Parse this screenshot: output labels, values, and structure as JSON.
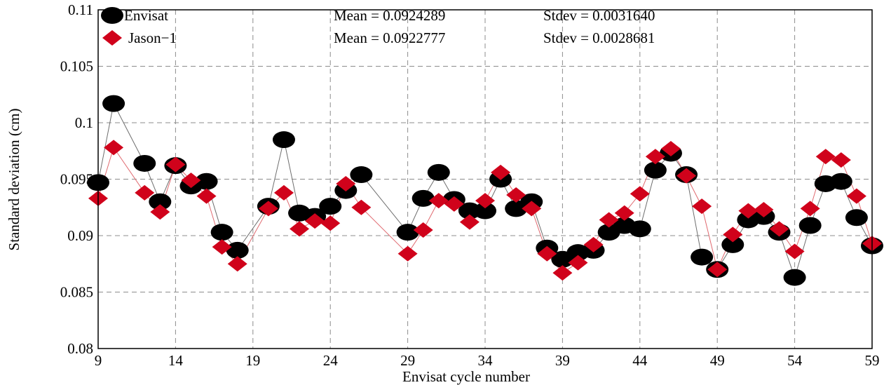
{
  "chart_data": {
    "type": "line",
    "title": "",
    "xlabel": "Envisat cycle number",
    "ylabel": "Standard deviation (cm)",
    "xlim": [
      9,
      59
    ],
    "ylim": [
      0.08,
      0.11
    ],
    "xticks": [
      "9",
      "14",
      "19",
      "24",
      "29",
      "34",
      "39",
      "44",
      "49",
      "54",
      "59"
    ],
    "yticks": [
      "0.08",
      "0.085",
      "0.09",
      "0.095",
      "0.1",
      "0.105",
      "0.11"
    ],
    "grid": true,
    "legend_position": "top-left",
    "series": [
      {
        "name": "Envisat",
        "color": "#000000",
        "line_color": "#6e6e6e",
        "marker": "circle",
        "x": [
          9,
          10,
          12,
          13,
          14,
          15,
          16,
          17,
          18,
          20,
          21,
          22,
          23,
          24,
          25,
          26,
          29,
          30,
          31,
          32,
          33,
          34,
          35,
          36,
          37,
          38,
          39,
          40,
          41,
          42,
          43,
          44,
          45,
          46,
          47,
          48,
          49,
          50,
          51,
          52,
          53,
          54,
          55,
          56,
          57,
          58,
          59
        ],
        "y": [
          0.0947,
          0.1017,
          0.0964,
          0.093,
          0.0962,
          0.0944,
          0.0948,
          0.0903,
          0.0887,
          0.0926,
          0.0985,
          0.092,
          0.0917,
          0.0926,
          0.094,
          0.0954,
          0.0903,
          0.0933,
          0.0956,
          0.0932,
          0.0922,
          0.0922,
          0.095,
          0.0924,
          0.093,
          0.0889,
          0.0879,
          0.0885,
          0.0887,
          0.0903,
          0.0909,
          0.0906,
          0.0958,
          0.0973,
          0.0954,
          0.0881,
          0.087,
          0.0892,
          0.0914,
          0.0917,
          0.0903,
          0.0863,
          0.0909,
          0.0946,
          0.0948,
          0.0916,
          0.0891
        ]
      },
      {
        "name": "Jason−1",
        "color": "#d0021b",
        "line_color": "#e06a70",
        "marker": "diamond",
        "x": [
          9,
          10,
          12,
          13,
          14,
          15,
          16,
          17,
          18,
          20,
          21,
          22,
          23,
          24,
          25,
          26,
          29,
          30,
          31,
          32,
          33,
          34,
          35,
          36,
          37,
          38,
          39,
          40,
          41,
          42,
          43,
          44,
          45,
          46,
          47,
          48,
          49,
          50,
          51,
          52,
          53,
          54,
          55,
          56,
          57,
          58,
          59
        ],
        "y": [
          0.0933,
          0.0978,
          0.0938,
          0.0921,
          0.0963,
          0.0949,
          0.0935,
          0.089,
          0.0875,
          0.0924,
          0.0938,
          0.0906,
          0.0913,
          0.0911,
          0.0946,
          0.0925,
          0.0884,
          0.0905,
          0.0931,
          0.0928,
          0.0912,
          0.0931,
          0.0956,
          0.0936,
          0.0924,
          0.0884,
          0.0867,
          0.0876,
          0.0892,
          0.0914,
          0.092,
          0.0937,
          0.097,
          0.0977,
          0.0953,
          0.0926,
          0.087,
          0.0901,
          0.0922,
          0.0923,
          0.0906,
          0.0886,
          0.0924,
          0.097,
          0.0967,
          0.0935,
          0.0893
        ]
      }
    ],
    "annotations": [
      {
        "mean": "Mean = 0.0924289",
        "stdev": "Stdev = 0.0031640"
      },
      {
        "mean": "Mean = 0.0922777",
        "stdev": "Stdev = 0.0028681"
      }
    ]
  }
}
